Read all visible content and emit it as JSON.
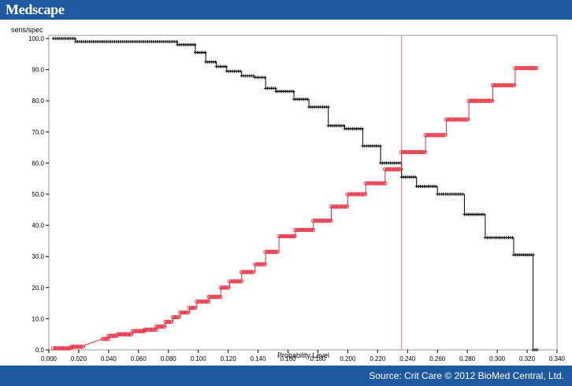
{
  "header": {
    "logo_text": "Medscape"
  },
  "footer": {
    "source_text": "Source: Crit Care © 2012 BioMed Central, Ltd."
  },
  "colors": {
    "brand_blue": "#1f5aa0",
    "specificity": "#000000",
    "sensitivity": "#e8283a",
    "cutoff_line": "#e07b7b"
  },
  "chart_data": {
    "type": "line",
    "title": "",
    "xlabel": "Probability Level",
    "ylabel": "sens/spec",
    "xlim": [
      0.0,
      0.34
    ],
    "ylim": [
      0.0,
      100.0
    ],
    "x_ticks": [
      "0.000",
      "0.020",
      "0.040",
      "0.060",
      "0.080",
      "0.100",
      "0.120",
      "0.140",
      "0.160",
      "0.180",
      "0.200",
      "0.220",
      "0.240",
      "0.260",
      "0.280",
      "0.300",
      "0.320",
      "0.340"
    ],
    "y_ticks": [
      "0.0",
      "10.0",
      "20.0",
      "30.0",
      "40.0",
      "50.0",
      "60.0",
      "70.0",
      "80.0",
      "90.0",
      "100.0"
    ],
    "grid": false,
    "reference_line": {
      "x": 0.236
    },
    "series": [
      {
        "marker": "plus",
        "points": [
          [
            0.003,
            100
          ],
          [
            0.018,
            100
          ],
          [
            0.018,
            99
          ],
          [
            0.086,
            99
          ],
          [
            0.086,
            98
          ],
          [
            0.098,
            98
          ],
          [
            0.098,
            95.5
          ],
          [
            0.105,
            95.5
          ],
          [
            0.105,
            92.5
          ],
          [
            0.112,
            92.5
          ],
          [
            0.112,
            91
          ],
          [
            0.119,
            91
          ],
          [
            0.119,
            89.5
          ],
          [
            0.129,
            89.5
          ],
          [
            0.129,
            88
          ],
          [
            0.138,
            88
          ],
          [
            0.138,
            87.5
          ],
          [
            0.145,
            87.5
          ],
          [
            0.145,
            84
          ],
          [
            0.152,
            84
          ],
          [
            0.152,
            83
          ],
          [
            0.164,
            83
          ],
          [
            0.164,
            80.5
          ],
          [
            0.174,
            80.5
          ],
          [
            0.174,
            78
          ],
          [
            0.187,
            78
          ],
          [
            0.187,
            72
          ],
          [
            0.198,
            72
          ],
          [
            0.198,
            71
          ],
          [
            0.21,
            71
          ],
          [
            0.21,
            65.5
          ],
          [
            0.222,
            65.5
          ],
          [
            0.222,
            60
          ],
          [
            0.236,
            60
          ],
          [
            0.236,
            55.5
          ],
          [
            0.246,
            55.5
          ],
          [
            0.246,
            52.5
          ],
          [
            0.26,
            52.5
          ],
          [
            0.26,
            50
          ],
          [
            0.278,
            50
          ],
          [
            0.278,
            43.5
          ],
          [
            0.292,
            43.5
          ],
          [
            0.292,
            36
          ],
          [
            0.311,
            36
          ],
          [
            0.311,
            30.5
          ],
          [
            0.324,
            30.5
          ],
          [
            0.324,
            0
          ],
          [
            0.327,
            0
          ]
        ]
      },
      {
        "marker": "circle",
        "points": [
          [
            0.003,
            0.5
          ],
          [
            0.015,
            0.5
          ],
          [
            0.015,
            1
          ],
          [
            0.024,
            1
          ],
          [
            0.024,
            1.5
          ],
          [
            0.03,
            2.5
          ],
          [
            0.036,
            3.5
          ],
          [
            0.04,
            3.5
          ],
          [
            0.04,
            4.5
          ],
          [
            0.046,
            4.5
          ],
          [
            0.046,
            5
          ],
          [
            0.056,
            5
          ],
          [
            0.056,
            6
          ],
          [
            0.064,
            6
          ],
          [
            0.064,
            6.5
          ],
          [
            0.072,
            6.5
          ],
          [
            0.072,
            7.5
          ],
          [
            0.078,
            7.5
          ],
          [
            0.078,
            9
          ],
          [
            0.083,
            9
          ],
          [
            0.083,
            10.5
          ],
          [
            0.088,
            10.5
          ],
          [
            0.088,
            12
          ],
          [
            0.094,
            12
          ],
          [
            0.094,
            13.5
          ],
          [
            0.099,
            13.5
          ],
          [
            0.099,
            15.5
          ],
          [
            0.107,
            15.5
          ],
          [
            0.107,
            17
          ],
          [
            0.115,
            17
          ],
          [
            0.115,
            20
          ],
          [
            0.121,
            20
          ],
          [
            0.121,
            22
          ],
          [
            0.129,
            22
          ],
          [
            0.129,
            25
          ],
          [
            0.138,
            25
          ],
          [
            0.138,
            27.5
          ],
          [
            0.145,
            27.5
          ],
          [
            0.145,
            31.5
          ],
          [
            0.154,
            31.5
          ],
          [
            0.154,
            36.5
          ],
          [
            0.165,
            36.5
          ],
          [
            0.165,
            38.5
          ],
          [
            0.177,
            38.5
          ],
          [
            0.177,
            41.5
          ],
          [
            0.189,
            41.5
          ],
          [
            0.189,
            46
          ],
          [
            0.2,
            46
          ],
          [
            0.2,
            50
          ],
          [
            0.212,
            50
          ],
          [
            0.212,
            53.5
          ],
          [
            0.225,
            53.5
          ],
          [
            0.225,
            58
          ],
          [
            0.236,
            58
          ],
          [
            0.236,
            63.5
          ],
          [
            0.252,
            63.5
          ],
          [
            0.252,
            69
          ],
          [
            0.266,
            69
          ],
          [
            0.266,
            74
          ],
          [
            0.281,
            74
          ],
          [
            0.281,
            80
          ],
          [
            0.297,
            80
          ],
          [
            0.297,
            85
          ],
          [
            0.312,
            85
          ],
          [
            0.312,
            90.5
          ],
          [
            0.327,
            90.5
          ]
        ]
      }
    ]
  }
}
